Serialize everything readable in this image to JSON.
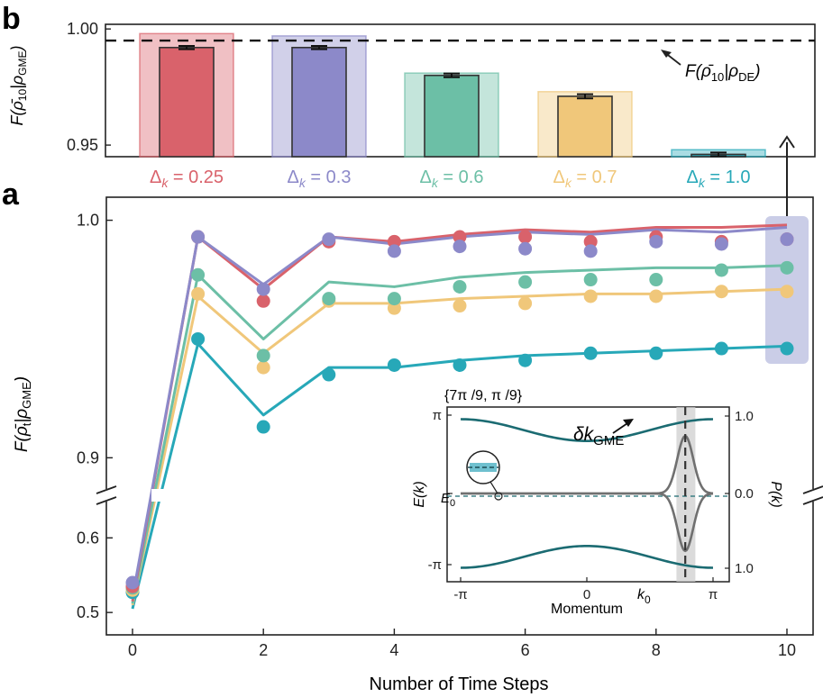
{
  "panel_b": {
    "letter": "b",
    "ylabel_main": "F(",
    "ylabel_rho": "ρ̄",
    "ylabel_sub": "10",
    "ylabel_mid": "|ρ",
    "ylabel_sub2": "GME",
    "ylabel_end": ")",
    "reference_label_main": "F(",
    "reference_label_rho": "ρ̄",
    "reference_label_sub": "10",
    "reference_label_mid": "|ρ",
    "reference_label_sub2": "DE",
    "reference_label_end": ")"
  },
  "panel_a": {
    "letter": "a",
    "ylabel_main": "F(",
    "ylabel_rho": "ρ̄",
    "ylabel_sub": "t",
    "ylabel_mid": "|ρ",
    "ylabel_sub2": "GME",
    "ylabel_end": ")",
    "xlabel": "Number of Time Steps"
  },
  "inset": {
    "title": "{7π /9, π /9}",
    "xlabel": "Momentum",
    "left_label": "E(k)",
    "right_label": "P(k)",
    "e0_label": "E",
    "e0_sub": "0",
    "k0_label": "k",
    "k0_sub": "0",
    "dk_label": "δk",
    "dk_sub": "GME",
    "x_ticks": [
      "-π",
      "0",
      "π"
    ],
    "left_ticks": [
      "π",
      "-π"
    ],
    "right_ticks": [
      "1.0",
      "0.0",
      "1.0"
    ]
  },
  "colors": {
    "d025": "#d9626b",
    "d03": "#8c89c9",
    "d06": "#6cbfa6",
    "d07": "#f0c77a",
    "d10": "#27a8b8",
    "inset_curve": "#1b6b72",
    "inset_p": "#707070",
    "highlight": "#b8bcdf"
  },
  "chart_data": [
    {
      "id": "panel_b",
      "type": "bar",
      "categories": [
        "Δk = 0.25",
        "Δk = 0.3",
        "Δk = 0.6",
        "Δk = 0.7",
        "Δk = 1.0"
      ],
      "category_main": [
        "Δ",
        "Δ",
        "Δ",
        "Δ",
        "Δ"
      ],
      "category_sub": [
        "k",
        "k",
        "k",
        "k",
        "k"
      ],
      "category_value": [
        " = 0.25",
        " = 0.3",
        " = 0.6",
        " = 0.7",
        " = 1.0"
      ],
      "experiment_values": [
        0.992,
        0.992,
        0.98,
        0.971,
        0.946
      ],
      "experiment_errors": [
        0.0007,
        0.0007,
        0.0008,
        0.0009,
        0.0008
      ],
      "theory_values": [
        0.998,
        0.997,
        0.981,
        0.973,
        0.948
      ],
      "reference_value": 0.995,
      "ylim": [
        0.945,
        1.002
      ],
      "yticks": [
        1.0,
        0.95
      ],
      "ytick_labels": [
        "1.00",
        "0.95"
      ]
    },
    {
      "id": "panel_a",
      "type": "line",
      "x": [
        0,
        1,
        2,
        3,
        4,
        5,
        6,
        7,
        8,
        9,
        10
      ],
      "xticks": [
        0,
        2,
        4,
        6,
        8,
        10
      ],
      "xtick_labels": [
        "0",
        "2",
        "4",
        "6",
        "8",
        "10"
      ],
      "yticks_upper": [
        1.0,
        0.9
      ],
      "ytick_labels_upper": [
        "1.0",
        "0.9"
      ],
      "yticks_lower": [
        0.6,
        0.5
      ],
      "ytick_labels_lower": [
        "0.6",
        "0.5"
      ],
      "ylim_upper": [
        0.888,
        1.0097
      ],
      "ylim_lower": [
        0.47,
        0.645
      ],
      "series": [
        {
          "key": "d10",
          "theory": [
            0.505,
            0.948,
            0.918,
            0.938,
            0.938,
            0.941,
            0.943,
            0.944,
            0.945,
            0.946,
            0.947
          ],
          "experiment": [
            0.527,
            0.95,
            0.913,
            0.935,
            0.939,
            0.939,
            0.941,
            0.944,
            0.944,
            0.946,
            0.946
          ]
        },
        {
          "key": "d07",
          "theory": [
            0.51,
            0.968,
            0.944,
            0.965,
            0.965,
            0.967,
            0.968,
            0.969,
            0.969,
            0.97,
            0.971
          ],
          "experiment": [
            0.53,
            0.969,
            0.938,
            0.966,
            0.963,
            0.964,
            0.965,
            0.968,
            0.968,
            0.97,
            0.97
          ]
        },
        {
          "key": "d06",
          "theory": [
            0.512,
            0.977,
            0.95,
            0.974,
            0.972,
            0.976,
            0.978,
            0.979,
            0.98,
            0.98,
            0.981
          ],
          "experiment": [
            0.533,
            0.977,
            0.943,
            0.967,
            0.967,
            0.972,
            0.974,
            0.975,
            0.975,
            0.979,
            0.98
          ]
        },
        {
          "key": "d025",
          "theory": [
            0.515,
            0.993,
            0.971,
            0.993,
            0.991,
            0.994,
            0.996,
            0.995,
            0.997,
            0.997,
            0.998
          ],
          "experiment": [
            0.535,
            0.993,
            0.966,
            0.991,
            0.991,
            0.993,
            0.993,
            0.991,
            0.993,
            0.991,
            0.992
          ]
        },
        {
          "key": "d03",
          "theory": [
            0.52,
            0.993,
            0.973,
            0.993,
            0.99,
            0.993,
            0.995,
            0.994,
            0.996,
            0.995,
            0.997
          ],
          "experiment": [
            0.54,
            0.993,
            0.971,
            0.992,
            0.987,
            0.989,
            0.988,
            0.987,
            0.991,
            0.99,
            0.992
          ]
        }
      ],
      "highlight_x": 10
    },
    {
      "id": "inset",
      "type": "line",
      "x_range": [
        "-π",
        "π"
      ],
      "k0": 0.78,
      "dk_band": [
        0.71,
        0.86
      ],
      "series": [
        {
          "name": "upper band",
          "shape": "cosine dip",
          "center": 0,
          "level": 0.64,
          "depth": 0.22
        },
        {
          "name": "lower band",
          "shape": "cosine bump",
          "center": 0,
          "level": -0.64,
          "depth": 0.22
        },
        {
          "name": "P(k)",
          "shape": "gaussian pair",
          "center": 0.78,
          "peak": 0.58
        }
      ]
    }
  ]
}
